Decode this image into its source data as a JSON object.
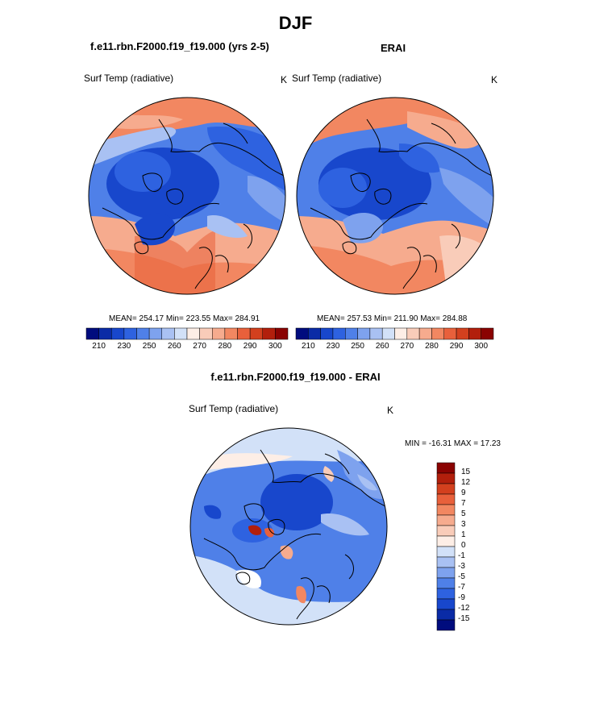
{
  "figure": {
    "title": "DJF",
    "left_title": "f.e11.rbn.F2000.f19_f19.000 (yrs 2-5)",
    "right_title": "ERAI",
    "diff_title": "f.e11.rbn.F2000.f19_f19.000 - ERAI"
  },
  "panels": {
    "model": {
      "variable": "Surf Temp (radiative)",
      "units": "K",
      "stats": "MEAN= 254.17  Min= 223.55  Max= 284.91"
    },
    "obs": {
      "variable": "Surf Temp (radiative)",
      "units": "K",
      "stats": "MEAN= 257.53  Min= 211.90  Max= 284.88"
    },
    "diff": {
      "variable": "Surf Temp (radiative)",
      "units": "K",
      "stats": "MIN = -16.31 MAX =  17.23"
    }
  },
  "colorbars": {
    "abs_labels": [
      "210",
      "230",
      "250",
      "260",
      "270",
      "280",
      "290",
      "300"
    ],
    "abs_colors": [
      "#000c7e",
      "#0a2ba6",
      "#1847cc",
      "#2e62e0",
      "#4f80e8",
      "#7ea2ee",
      "#a9c1f3",
      "#d2e1f8",
      "#fdeee6",
      "#f9ccb9",
      "#f6ab8e",
      "#f28761",
      "#e8603b",
      "#d3401e",
      "#b21f0c",
      "#8a0302"
    ],
    "diff_labels": [
      "15",
      "12",
      "9",
      "7",
      "5",
      "3",
      "1",
      "0",
      "-1",
      "-3",
      "-5",
      "-7",
      "-9",
      "-12",
      "-15"
    ],
    "diff_colors": [
      "#8a0302",
      "#b21f0c",
      "#d3401e",
      "#e8603b",
      "#f28761",
      "#f6ab8e",
      "#f9ccb9",
      "#fdeee6",
      "#d2e1f8",
      "#a9c1f3",
      "#7ea2ee",
      "#4f80e8",
      "#2e62e0",
      "#1847cc",
      "#0a2ba6",
      "#000c7e"
    ]
  }
}
